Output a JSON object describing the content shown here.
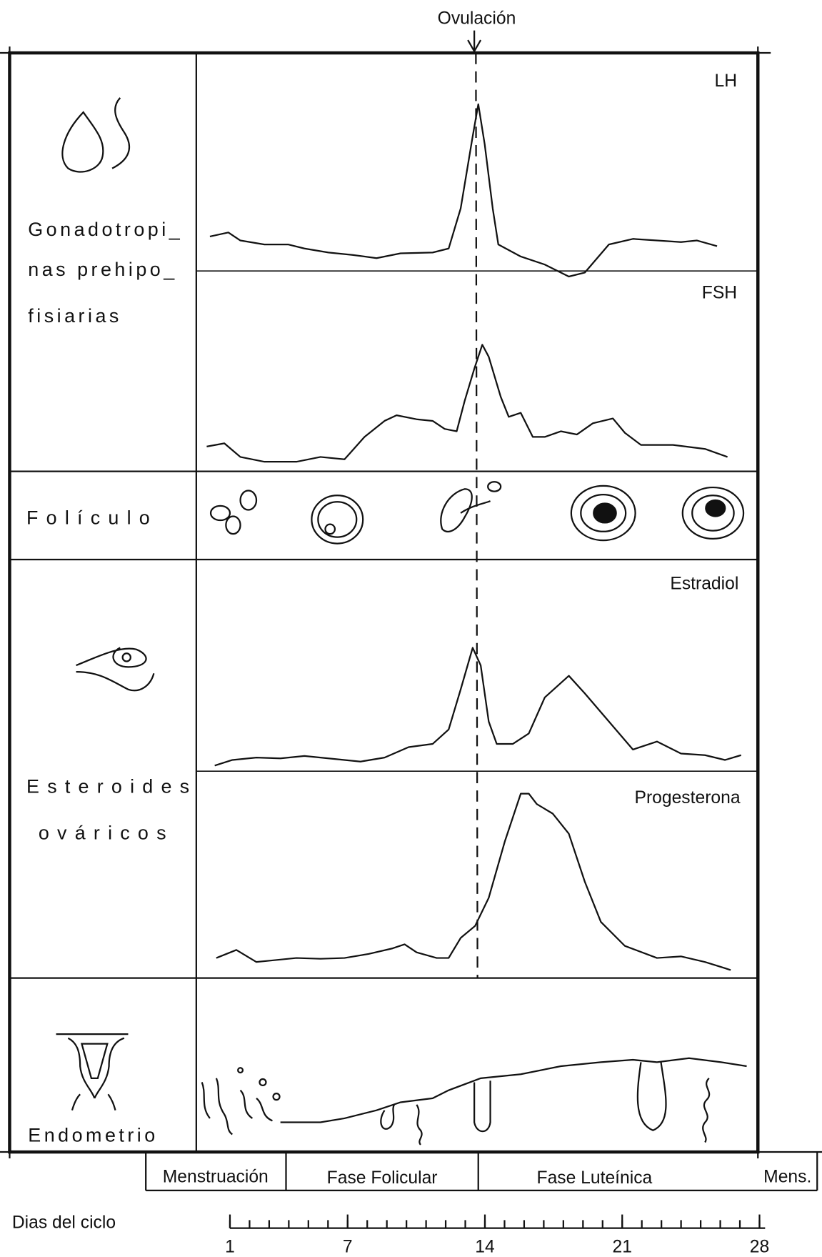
{
  "header": {
    "ovulation": "Ovulación"
  },
  "sections": [
    {
      "label_lines": [
        "Gonadotropi_",
        "nas prehipo_",
        "fisiarias"
      ],
      "curve_labels": [
        "LH",
        "FSH"
      ]
    },
    {
      "label_lines": [
        "Folículo"
      ]
    },
    {
      "label_lines": [
        "Esteroides",
        "ováricos"
      ],
      "curve_labels": [
        "Estradiol",
        "Progesterona"
      ]
    },
    {
      "label_lines": [
        "Endometrio"
      ]
    }
  ],
  "phases": [
    "Menstruación",
    "Fase Folicular",
    "Fase Luteínica",
    "Mens."
  ],
  "days": {
    "label": "Dias del ciclo",
    "ticks": [
      1,
      7,
      14,
      21,
      28
    ]
  }
}
